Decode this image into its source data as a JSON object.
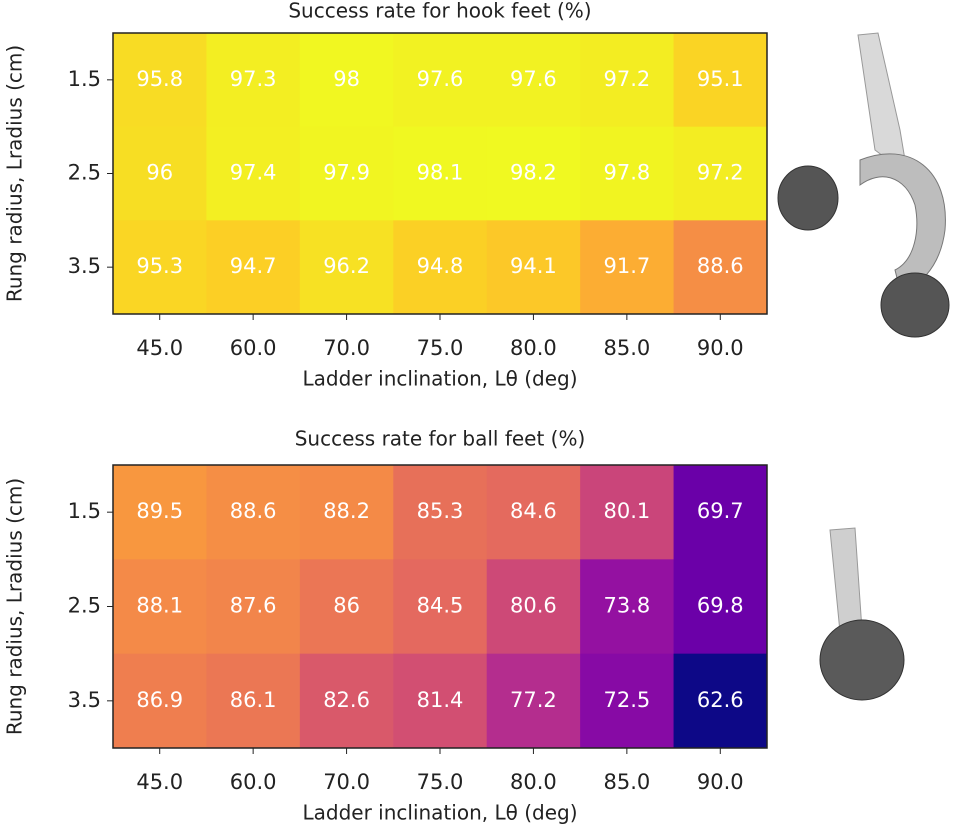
{
  "chart_data": [
    {
      "type": "heatmap",
      "title": "Success rate for hook feet (%)",
      "x_label": "Ladder inclination, Lθ (deg)",
      "y_label": "Rung radius, Lradius (cm)",
      "categories": [
        "45.0",
        "60.0",
        "70.0",
        "75.0",
        "80.0",
        "85.0",
        "90.0"
      ],
      "y_categories": [
        "1.5",
        "2.5",
        "3.5"
      ],
      "colormap": "plasma",
      "values": [
        [
          95.8,
          97.3,
          98.0,
          97.6,
          97.6,
          97.2,
          95.1
        ],
        [
          96.0,
          97.4,
          97.9,
          98.1,
          98.2,
          97.8,
          97.2
        ],
        [
          95.3,
          94.7,
          96.2,
          94.8,
          94.1,
          91.7,
          88.6
        ]
      ]
    },
    {
      "type": "heatmap",
      "title": "Success rate for ball feet (%)",
      "x_label": "Ladder inclination, Lθ (deg)",
      "y_label": "Rung radius, Lradius (cm)",
      "categories": [
        "45.0",
        "60.0",
        "70.0",
        "75.0",
        "80.0",
        "85.0",
        "90.0"
      ],
      "y_categories": [
        "1.5",
        "2.5",
        "3.5"
      ],
      "colormap": "plasma",
      "values": [
        [
          89.5,
          88.6,
          88.2,
          85.3,
          84.6,
          80.1,
          69.7
        ],
        [
          88.1,
          87.6,
          86.0,
          84.5,
          80.6,
          73.8,
          69.8
        ],
        [
          86.9,
          86.1,
          82.6,
          81.4,
          77.2,
          72.5,
          62.6
        ]
      ]
    }
  ]
}
